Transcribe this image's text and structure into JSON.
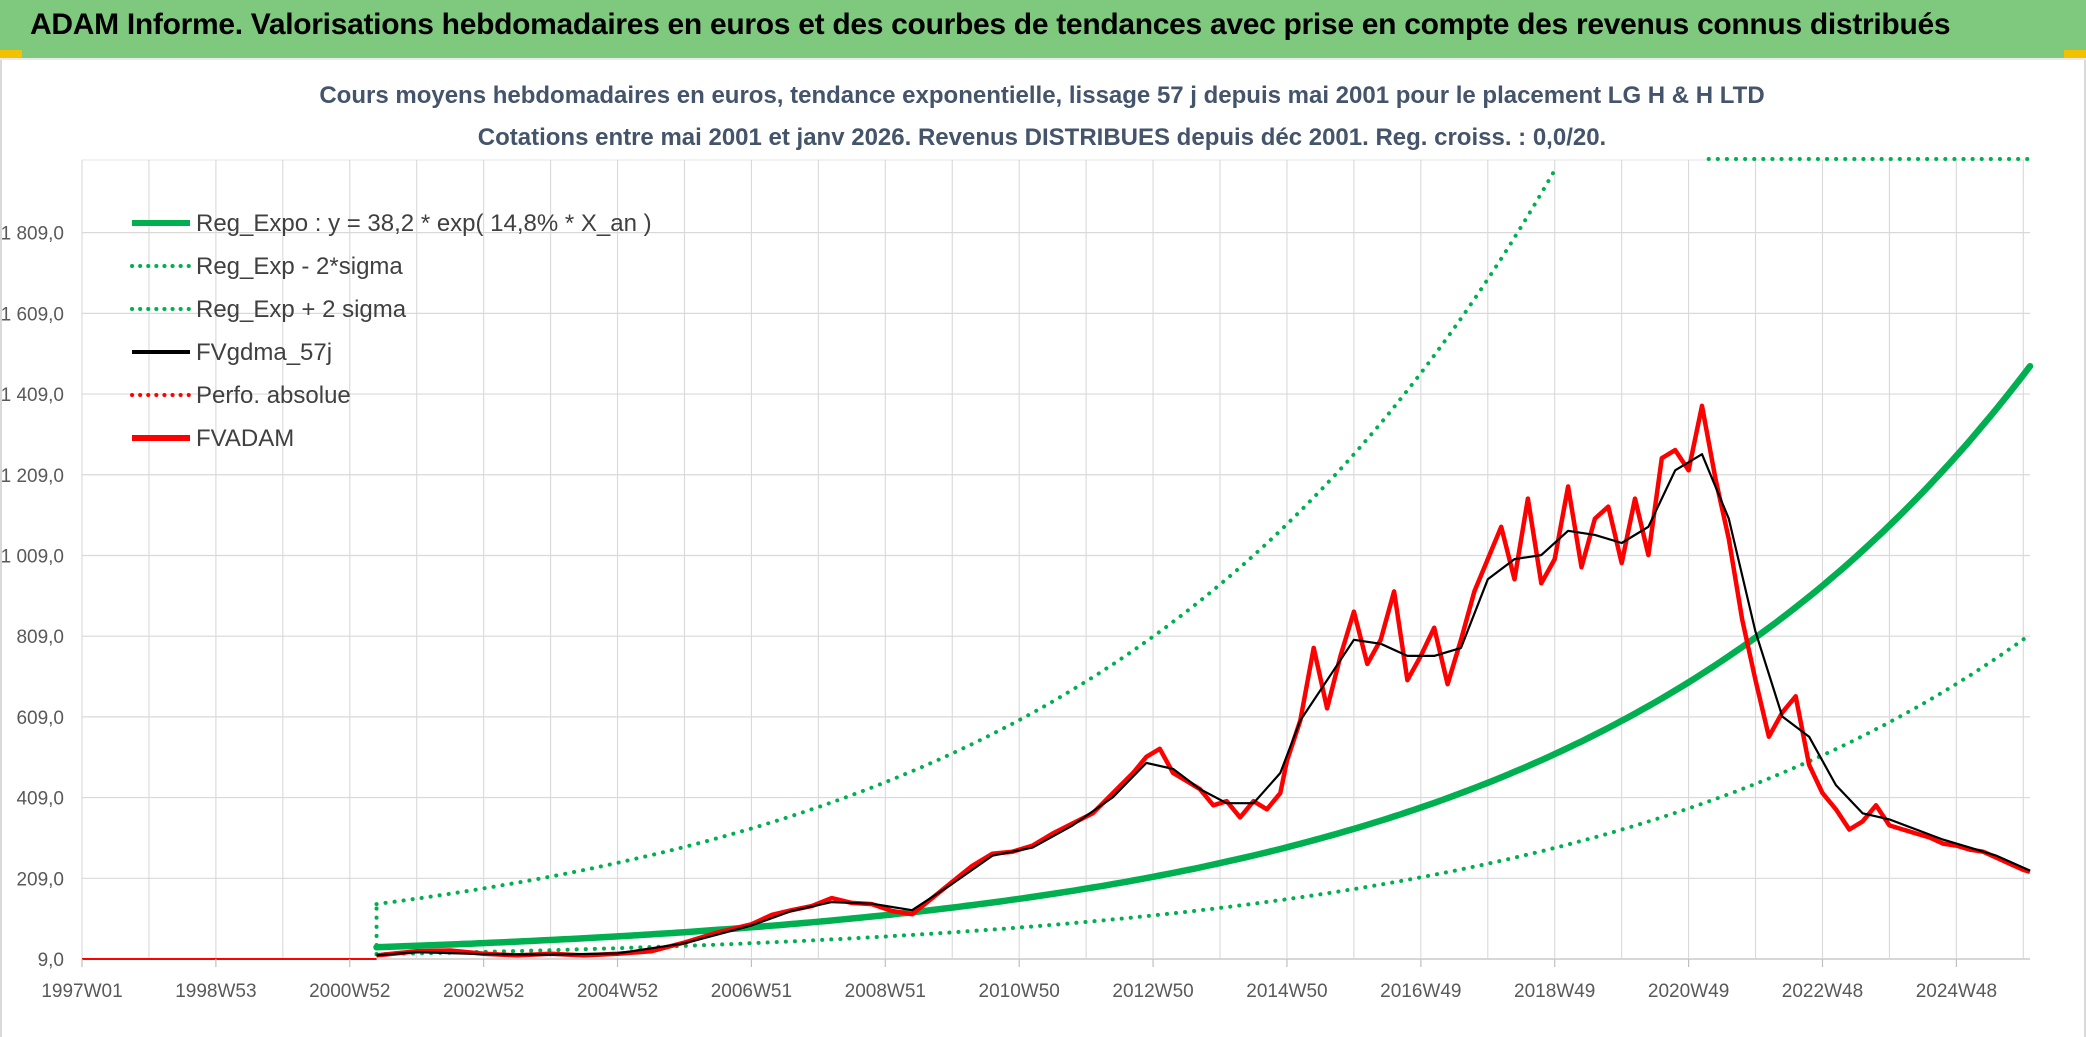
{
  "banner": {
    "title": "ADAM Informe. Valorisations hebdomadaires en euros et des courbes de tendances avec prise en compte des revenus connus distribués"
  },
  "chart_data": {
    "type": "line",
    "title_line1": "Cours moyens hebdomadaires en euros, tendance exponentielle, lissage 57 j depuis mai 2001 pour le placement LG H & H LTD",
    "title_line2": "Cotations entre mai 2001 et janv 2026. Revenus DISTRIBUES depuis déc 2001. Reg. croiss. : 0,0/20.",
    "x_tick_labels": [
      "1997W01",
      "1998W53",
      "2000W52",
      "2002W52",
      "2004W52",
      "2006W51",
      "2008W51",
      "2010W50",
      "2012W50",
      "2014W50",
      "2016W49",
      "2018W49",
      "2020W49",
      "2022W48",
      "2024W48"
    ],
    "y_tick_labels": [
      "9,0",
      "209,0",
      "409,0",
      "609,0",
      "809,0",
      "1 009,0",
      "1 209,0",
      "1 409,0",
      "1 609,0",
      "1 809,0"
    ],
    "ylim": [
      9,
      1989
    ],
    "xlim": [
      1997.0,
      2026.1
    ],
    "grid": true,
    "legend_position": "top-left",
    "legend": [
      {
        "label": "Reg_Expo : y = 38,2 * exp( 14,8% *  X_an )",
        "color": "#00b050",
        "style": "solid-thick"
      },
      {
        "label": "Reg_Exp - 2*sigma",
        "color": "#00b050",
        "style": "dotted"
      },
      {
        "label": "Reg_Exp + 2 sigma",
        "color": "#00b050",
        "style": "dotted"
      },
      {
        "label": "FVgdma_57j",
        "color": "#000000",
        "style": "solid"
      },
      {
        "label": "Perfo. absolue",
        "color": "#ff0000",
        "style": "dotted"
      },
      {
        "label": "FVADAM",
        "color": "#ff0000",
        "style": "solid-thick"
      }
    ],
    "regression": {
      "start_year": 2001.4,
      "end_year": 2026.1,
      "start_value": 38.2,
      "growth_rate": 0.148,
      "lower_factor": 0.55,
      "upper_factor": 3.8,
      "upper_cap": 1989
    },
    "baseline": {
      "x_start": 1997.0,
      "x_end": 2001.4,
      "value": 9
    },
    "series": [
      {
        "name": "FVADAM",
        "color": "#ff0000",
        "x": [
          2001.4,
          2002.0,
          2002.5,
          2003.0,
          2003.5,
          2004.0,
          2004.5,
          2005.0,
          2005.5,
          2006.0,
          2006.5,
          2007.0,
          2007.3,
          2007.6,
          2007.9,
          2008.2,
          2008.5,
          2008.8,
          2009.1,
          2009.4,
          2009.7,
          2010.0,
          2010.3,
          2010.6,
          2010.9,
          2011.2,
          2011.5,
          2011.8,
          2012.1,
          2012.4,
          2012.7,
          2012.9,
          2013.1,
          2013.3,
          2013.5,
          2013.7,
          2013.9,
          2014.1,
          2014.3,
          2014.5,
          2014.7,
          2014.9,
          2015.0,
          2015.2,
          2015.4,
          2015.6,
          2015.8,
          2016.0,
          2016.2,
          2016.4,
          2016.6,
          2016.8,
          2017.0,
          2017.2,
          2017.4,
          2017.6,
          2017.8,
          2018.0,
          2018.2,
          2018.4,
          2018.6,
          2018.8,
          2019.0,
          2019.2,
          2019.4,
          2019.6,
          2019.8,
          2020.0,
          2020.2,
          2020.4,
          2020.6,
          2020.8,
          2021.0,
          2021.2,
          2021.4,
          2021.6,
          2021.8,
          2022.0,
          2022.2,
          2022.4,
          2022.6,
          2022.8,
          2023.0,
          2023.2,
          2023.4,
          2023.6,
          2023.8,
          2024.0,
          2024.2,
          2024.4,
          2024.6,
          2024.8,
          2025.0,
          2025.2,
          2025.4,
          2025.6,
          2025.8,
          2026.0,
          2026.1
        ],
        "values": [
          18,
          28,
          30,
          22,
          18,
          22,
          18,
          22,
          28,
          50,
          75,
          95,
          118,
          130,
          140,
          160,
          148,
          145,
          128,
          120,
          160,
          200,
          240,
          270,
          275,
          290,
          320,
          345,
          370,
          420,
          470,
          510,
          530,
          470,
          450,
          430,
          390,
          400,
          360,
          400,
          380,
          420,
          500,
          600,
          780,
          630,
          760,
          870,
          740,
          800,
          920,
          700,
          760,
          830,
          690,
          800,
          920,
          1000,
          1080,
          950,
          1150,
          940,
          1000,
          1180,
          980,
          1100,
          1130,
          990,
          1150,
          1010,
          1250,
          1270,
          1220,
          1380,
          1200,
          1050,
          850,
          700,
          560,
          620,
          660,
          490,
          420,
          380,
          330,
          350,
          390,
          340,
          330,
          320,
          310,
          295,
          290,
          280,
          275,
          260,
          245,
          230,
          225
        ]
      },
      {
        "name": "FVgdma_57j",
        "color": "#000000",
        "x": [
          2001.4,
          2002.0,
          2003.0,
          2004.0,
          2005.0,
          2006.0,
          2007.0,
          2007.6,
          2008.2,
          2008.8,
          2009.4,
          2010.0,
          2010.6,
          2011.2,
          2011.8,
          2012.4,
          2012.9,
          2013.3,
          2013.7,
          2014.1,
          2014.5,
          2014.9,
          2015.2,
          2015.6,
          2016.0,
          2016.4,
          2016.8,
          2017.2,
          2017.6,
          2018.0,
          2018.4,
          2018.8,
          2019.2,
          2019.6,
          2020.0,
          2020.4,
          2020.8,
          2021.2,
          2021.6,
          2022.0,
          2022.4,
          2022.8,
          2023.2,
          2023.6,
          2024.0,
          2024.4,
          2024.8,
          2025.2,
          2025.6,
          2026.1
        ],
        "values": [
          18,
          26,
          21,
          20,
          23,
          48,
          92,
          128,
          150,
          146,
          130,
          195,
          265,
          285,
          340,
          410,
          495,
          480,
          430,
          395,
          395,
          470,
          600,
          700,
          800,
          790,
          760,
          760,
          780,
          950,
          1000,
          1010,
          1070,
          1060,
          1040,
          1080,
          1220,
          1260,
          1100,
          820,
          610,
          560,
          440,
          370,
          355,
          330,
          305,
          285,
          265,
          228
        ]
      }
    ]
  }
}
